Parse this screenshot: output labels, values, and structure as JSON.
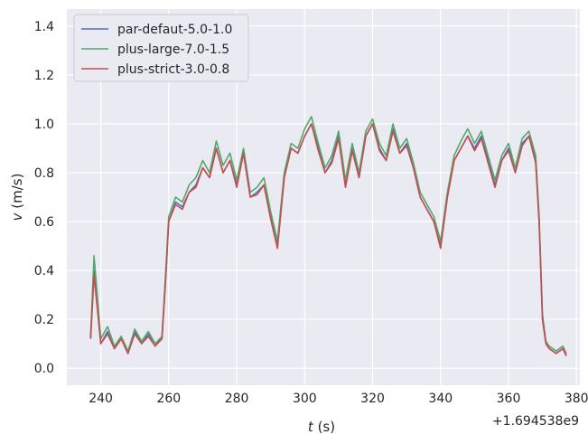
{
  "chart_data": {
    "type": "line",
    "xlabel_var": "t",
    "xlabel_unit": " (s)",
    "ylabel_var": "v",
    "ylabel_unit": " (m/s)",
    "x_offset_label": "+1.694538e9",
    "xlim": [
      230,
      381
    ],
    "ylim": [
      -0.07,
      1.47
    ],
    "x_ticks": [
      240,
      260,
      280,
      300,
      320,
      340,
      360,
      380
    ],
    "y_ticks": [
      0.0,
      0.2,
      0.4,
      0.6,
      0.8,
      1.0,
      1.2,
      1.4
    ],
    "x_tick_labels": [
      "240",
      "260",
      "280",
      "300",
      "320",
      "340",
      "360",
      "380"
    ],
    "y_tick_labels": [
      "0.0",
      "0.2",
      "0.4",
      "0.6",
      "0.8",
      "1.0",
      "1.2",
      "1.4"
    ],
    "grid": true,
    "legend_position": "top-left",
    "series": [
      {
        "name": "par-defaut-5.0-1.0",
        "color": "#4c72b0",
        "x": [
          237,
          238,
          240,
          242,
          244,
          246,
          248,
          250,
          252,
          254,
          256,
          258,
          259,
          260,
          262,
          264,
          266,
          268,
          270,
          272,
          274,
          276,
          278,
          280,
          282,
          284,
          286,
          288,
          290,
          292,
          294,
          296,
          298,
          300,
          302,
          304,
          306,
          308,
          310,
          312,
          314,
          316,
          318,
          320,
          322,
          324,
          326,
          328,
          330,
          332,
          334,
          336,
          338,
          340,
          342,
          344,
          346,
          348,
          350,
          352,
          354,
          356,
          358,
          360,
          362,
          364,
          366,
          368,
          369,
          370,
          371,
          372,
          374,
          376,
          377
        ],
        "y": [
          0.12,
          0.4,
          0.1,
          0.15,
          0.08,
          0.12,
          0.06,
          0.15,
          0.1,
          0.14,
          0.1,
          0.12,
          0.35,
          0.6,
          0.68,
          0.66,
          0.72,
          0.75,
          0.82,
          0.78,
          0.9,
          0.8,
          0.85,
          0.75,
          0.88,
          0.7,
          0.72,
          0.75,
          0.62,
          0.5,
          0.78,
          0.9,
          0.88,
          0.95,
          1.0,
          0.9,
          0.8,
          0.85,
          0.95,
          0.75,
          0.9,
          0.78,
          0.95,
          1.0,
          0.9,
          0.85,
          0.98,
          0.88,
          0.92,
          0.82,
          0.7,
          0.65,
          0.6,
          0.5,
          0.7,
          0.85,
          0.9,
          0.95,
          0.9,
          0.95,
          0.85,
          0.75,
          0.85,
          0.9,
          0.8,
          0.92,
          0.95,
          0.85,
          0.6,
          0.2,
          0.1,
          0.08,
          0.06,
          0.08,
          0.05
        ]
      },
      {
        "name": "plus-large-7.0-1.5",
        "color": "#55a868",
        "x": [
          237,
          238,
          240,
          242,
          244,
          246,
          248,
          250,
          252,
          254,
          256,
          258,
          259,
          260,
          262,
          264,
          266,
          268,
          270,
          272,
          274,
          276,
          278,
          280,
          282,
          284,
          286,
          288,
          290,
          292,
          294,
          296,
          298,
          300,
          302,
          304,
          306,
          308,
          310,
          312,
          314,
          316,
          318,
          320,
          322,
          324,
          326,
          328,
          330,
          332,
          334,
          336,
          338,
          340,
          342,
          344,
          346,
          348,
          350,
          352,
          354,
          356,
          358,
          360,
          362,
          364,
          366,
          368,
          369,
          370,
          371,
          372,
          374,
          376,
          377
        ],
        "y": [
          0.13,
          0.46,
          0.12,
          0.17,
          0.09,
          0.13,
          0.07,
          0.16,
          0.11,
          0.15,
          0.1,
          0.13,
          0.37,
          0.62,
          0.7,
          0.68,
          0.75,
          0.78,
          0.85,
          0.8,
          0.93,
          0.83,
          0.88,
          0.77,
          0.9,
          0.72,
          0.74,
          0.78,
          0.64,
          0.52,
          0.8,
          0.92,
          0.9,
          0.98,
          1.03,
          0.92,
          0.82,
          0.87,
          0.97,
          0.77,
          0.92,
          0.8,
          0.97,
          1.02,
          0.92,
          0.87,
          1.0,
          0.9,
          0.94,
          0.84,
          0.72,
          0.67,
          0.62,
          0.52,
          0.72,
          0.87,
          0.93,
          0.98,
          0.92,
          0.97,
          0.87,
          0.77,
          0.87,
          0.92,
          0.82,
          0.94,
          0.97,
          0.87,
          0.62,
          0.22,
          0.11,
          0.09,
          0.07,
          0.09,
          0.06
        ]
      },
      {
        "name": "plus-strict-3.0-0.8",
        "color": "#c44e52",
        "x": [
          237,
          238,
          240,
          242,
          244,
          246,
          248,
          250,
          252,
          254,
          256,
          258,
          259,
          260,
          262,
          264,
          266,
          268,
          270,
          272,
          274,
          276,
          278,
          280,
          282,
          284,
          286,
          288,
          290,
          292,
          294,
          296,
          298,
          300,
          302,
          304,
          306,
          308,
          310,
          312,
          314,
          316,
          318,
          320,
          322,
          324,
          326,
          328,
          330,
          332,
          334,
          336,
          338,
          340,
          342,
          344,
          346,
          348,
          350,
          352,
          354,
          356,
          358,
          360,
          362,
          364,
          366,
          368,
          369,
          370,
          371,
          372,
          374,
          376,
          377
        ],
        "y": [
          0.12,
          0.38,
          0.1,
          0.14,
          0.08,
          0.12,
          0.06,
          0.14,
          0.1,
          0.13,
          0.09,
          0.12,
          0.34,
          0.6,
          0.67,
          0.65,
          0.72,
          0.74,
          0.82,
          0.78,
          0.9,
          0.8,
          0.85,
          0.74,
          0.88,
          0.7,
          0.71,
          0.75,
          0.61,
          0.49,
          0.78,
          0.9,
          0.88,
          0.95,
          1.0,
          0.89,
          0.8,
          0.84,
          0.94,
          0.74,
          0.89,
          0.78,
          0.95,
          1.0,
          0.89,
          0.85,
          0.97,
          0.88,
          0.91,
          0.82,
          0.7,
          0.65,
          0.6,
          0.49,
          0.7,
          0.85,
          0.9,
          0.95,
          0.89,
          0.94,
          0.84,
          0.74,
          0.85,
          0.89,
          0.8,
          0.91,
          0.95,
          0.84,
          0.6,
          0.2,
          0.1,
          0.08,
          0.06,
          0.08,
          0.05
        ]
      }
    ]
  },
  "colors": {
    "plot_background": "#eaeaf2",
    "grid": "#ffffff",
    "text": "#262626"
  }
}
